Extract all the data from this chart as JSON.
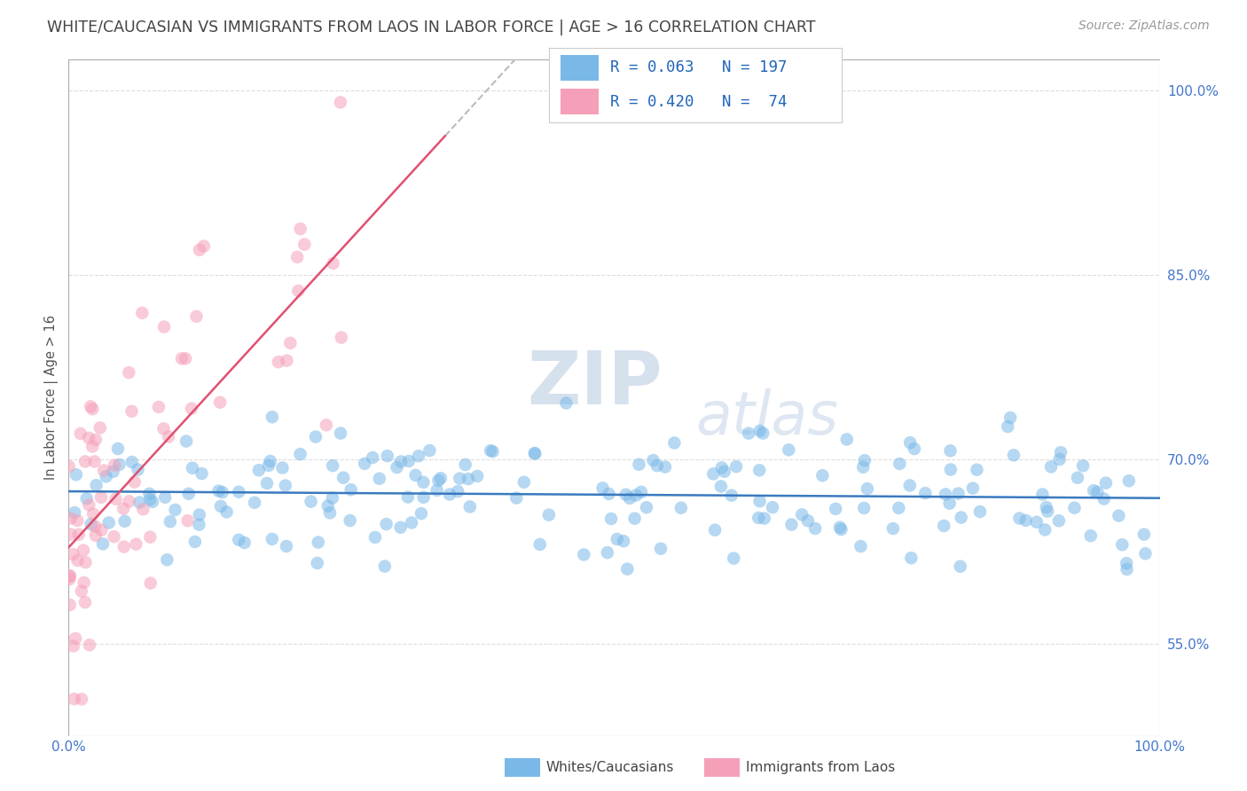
{
  "title": "WHITE/CAUCASIAN VS IMMIGRANTS FROM LAOS IN LABOR FORCE | AGE > 16 CORRELATION CHART",
  "source": "Source: ZipAtlas.com",
  "ylabel": "In Labor Force | Age > 16",
  "ytick_values": [
    0.55,
    0.7,
    0.85,
    1.0
  ],
  "xlim": [
    0.0,
    1.0
  ],
  "ylim": [
    0.475,
    1.025
  ],
  "blue_color": "#7ab8e8",
  "pink_color": "#f5a0b8",
  "blue_line_color": "#3a7abf",
  "pink_line_color": "#e05070",
  "pink_line_dashed_color": "#cccccc",
  "legend_blue_label": "Whites/Caucasians",
  "legend_pink_label": "Immigrants from Laos",
  "r_blue": "0.063",
  "n_blue": "197",
  "r_pink": "0.420",
  "n_pink": "74",
  "watermark_zip": "ZIP",
  "watermark_atlas": "atlas",
  "background_color": "#ffffff",
  "grid_color": "#dddddd",
  "title_color": "#444444",
  "legend_text_color": "#2266bb"
}
